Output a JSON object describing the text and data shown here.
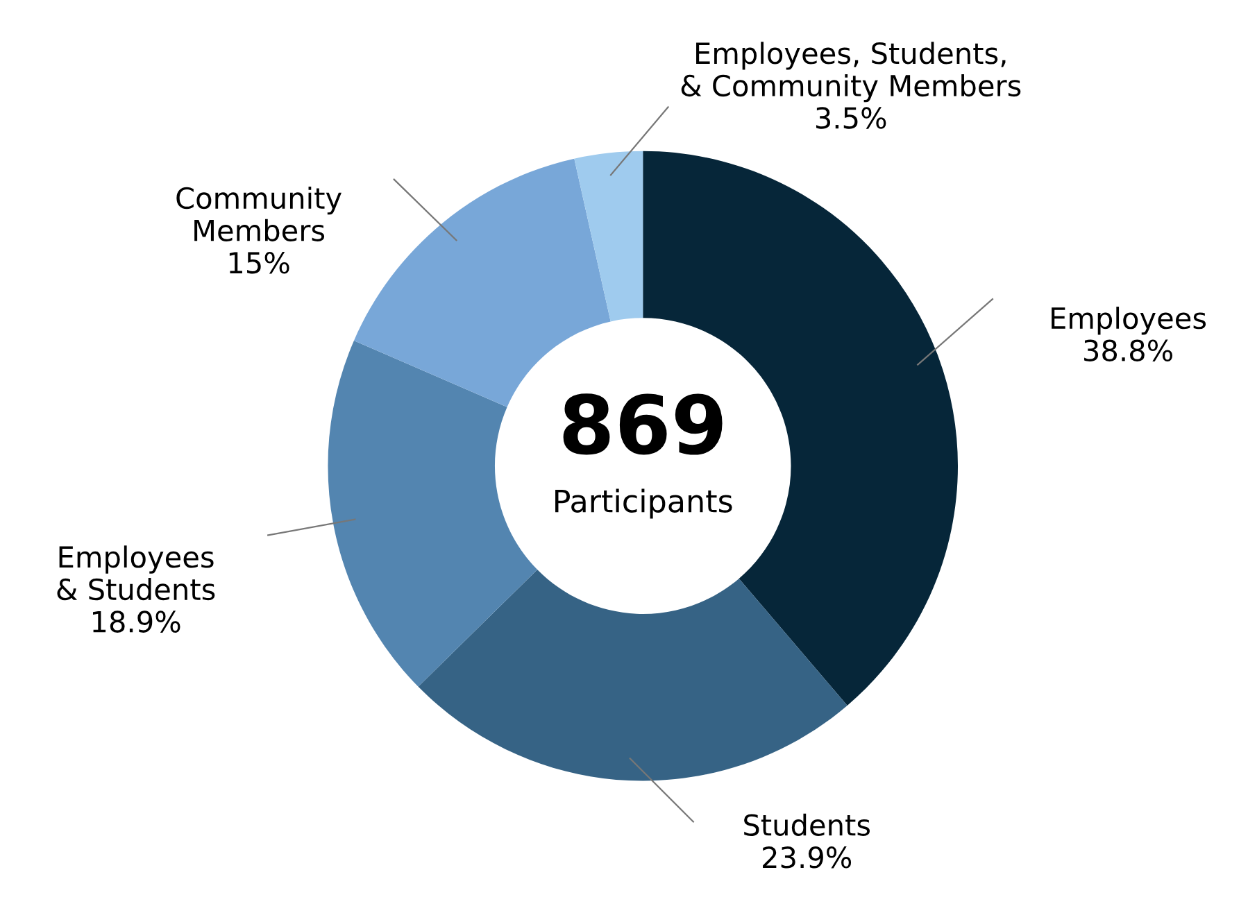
{
  "chart_data": {
    "type": "donut",
    "categories": [
      "Employees",
      "Students",
      "Employees\n& Students",
      "Community\nMembers",
      "Employees, Students,\n& Community Members"
    ],
    "values": [
      38.8,
      23.9,
      18.9,
      15,
      3.5
    ],
    "colors": [
      "#062639",
      "#366385",
      "#5385b0",
      "#78a7d8",
      "#9fcbee"
    ],
    "value_labels": [
      "38.8%",
      "23.9%",
      "18.9%",
      "15%",
      "3.5%"
    ],
    "annotations": [
      "869",
      "Participants"
    ]
  }
}
